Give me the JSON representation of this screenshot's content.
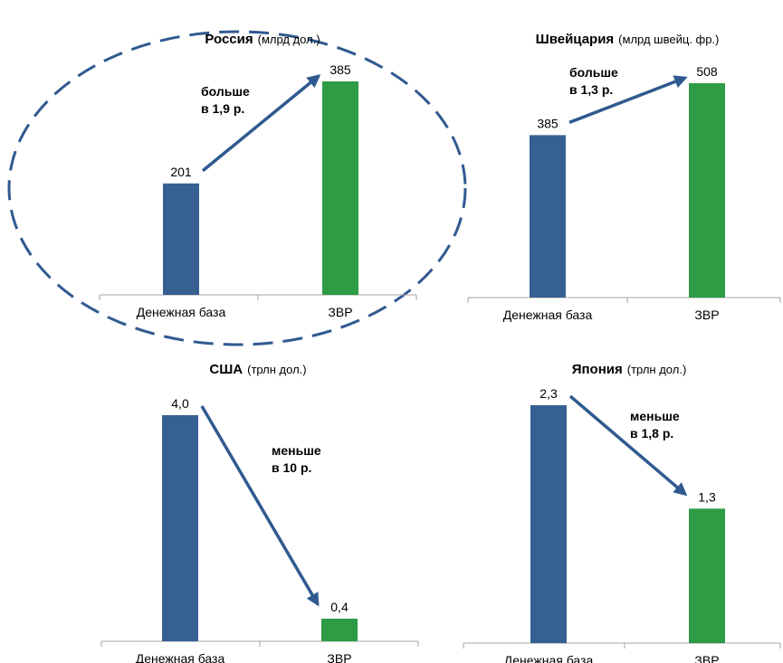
{
  "colors": {
    "base": "#376092",
    "reserves": "#2e9b45",
    "arrow": "#2f5a8f",
    "axis": "#a6a6a6",
    "ellipse": "#2f5a8f"
  },
  "chart_data": [
    {
      "type": "bar",
      "title": "Россия",
      "unit": "(млрд дол.)",
      "categories": [
        "Денежная база",
        "ЗВР"
      ],
      "values": [
        201,
        385
      ],
      "value_labels": [
        "201",
        "385"
      ],
      "annotation": [
        "больше",
        "в 1,9 р."
      ],
      "highlighted": true
    },
    {
      "type": "bar",
      "title": "Швейцария",
      "unit": "(млрд швейц. фр.)",
      "categories": [
        "Денежная база",
        "ЗВР"
      ],
      "values": [
        385,
        508
      ],
      "value_labels": [
        "385",
        "508"
      ],
      "annotation": [
        "больше",
        "в 1,3 р."
      ],
      "highlighted": false
    },
    {
      "type": "bar",
      "title": "США",
      "unit": "(трлн дол.)",
      "categories": [
        "Денежная база",
        "ЗВР"
      ],
      "values": [
        4.0,
        0.4
      ],
      "value_labels": [
        "4,0",
        "0,4"
      ],
      "annotation": [
        "меньше",
        "в 10 р."
      ],
      "highlighted": false
    },
    {
      "type": "bar",
      "title": "Япония",
      "unit": "(трлн дол.)",
      "categories": [
        "Денежная база",
        "ЗВР"
      ],
      "values": [
        2.3,
        1.3
      ],
      "value_labels": [
        "2,3",
        "1,3"
      ],
      "annotation": [
        "меньше",
        "в 1,8 р."
      ],
      "highlighted": false
    }
  ]
}
